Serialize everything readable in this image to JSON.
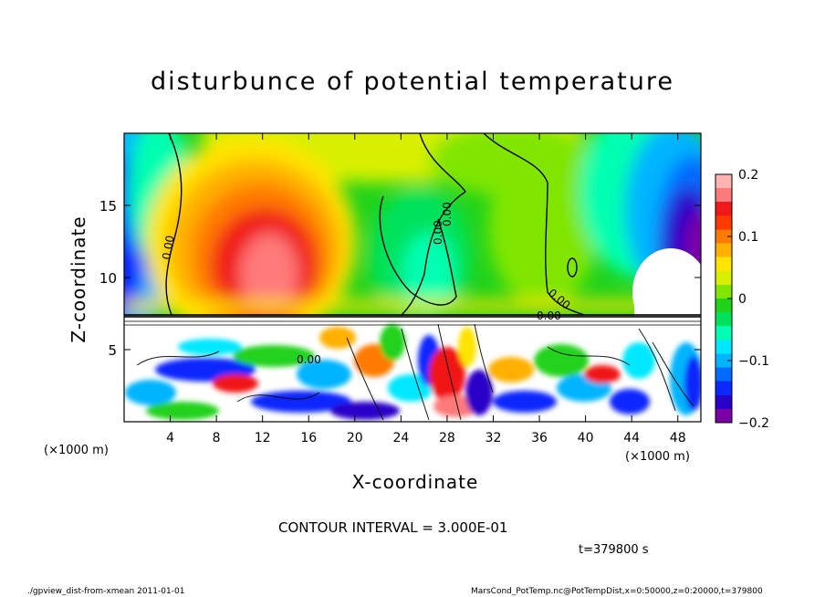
{
  "chart_data": {
    "type": "heatmap",
    "title": "disturbunce of potential temperature",
    "xlabel": "X-coordinate",
    "ylabel": "Z-coordinate",
    "x_unit": "(×1000 m)",
    "xlim": [
      0,
      50
    ],
    "ylim": [
      0,
      20
    ],
    "x_ticks": [
      4,
      8,
      12,
      16,
      20,
      24,
      28,
      32,
      36,
      40,
      44,
      48
    ],
    "y_ticks": [
      5,
      10,
      15
    ],
    "colorbar": {
      "min": -0.2,
      "max": 0.2,
      "ticks": [
        {
          "value": 0.2,
          "label": "0.2"
        },
        {
          "value": 0.1,
          "label": "0.1"
        },
        {
          "value": 0,
          "label": "0"
        },
        {
          "value": -0.1,
          "label": "−0.1"
        },
        {
          "value": -0.2,
          "label": "−0.2"
        }
      ],
      "colors": [
        "#7a00a6",
        "#2a00c8",
        "#0a28ff",
        "#006bff",
        "#00b4ff",
        "#00e8ff",
        "#00ffb0",
        "#00e25c",
        "#20d21a",
        "#80e600",
        "#d8f000",
        "#ffe400",
        "#ffb000",
        "#ff7a00",
        "#ff3a00",
        "#f01818",
        "#ff7a7a",
        "#ffb4b4"
      ]
    },
    "contour_labels": [
      "0.00",
      "0.00",
      "0.00",
      "0.00",
      "0.00",
      "0.00"
    ],
    "contour_interval": "CONTOUR INTERVAL = 3.000E-01",
    "time_label": "t=379800 s",
    "footer_left": "./gpview_dist-from-xmean   2011-01-01",
    "footer_right": "MarsCond_PotTemp.nc@PotTempDist,x=0:50000,z=0:20000,t=379800"
  }
}
